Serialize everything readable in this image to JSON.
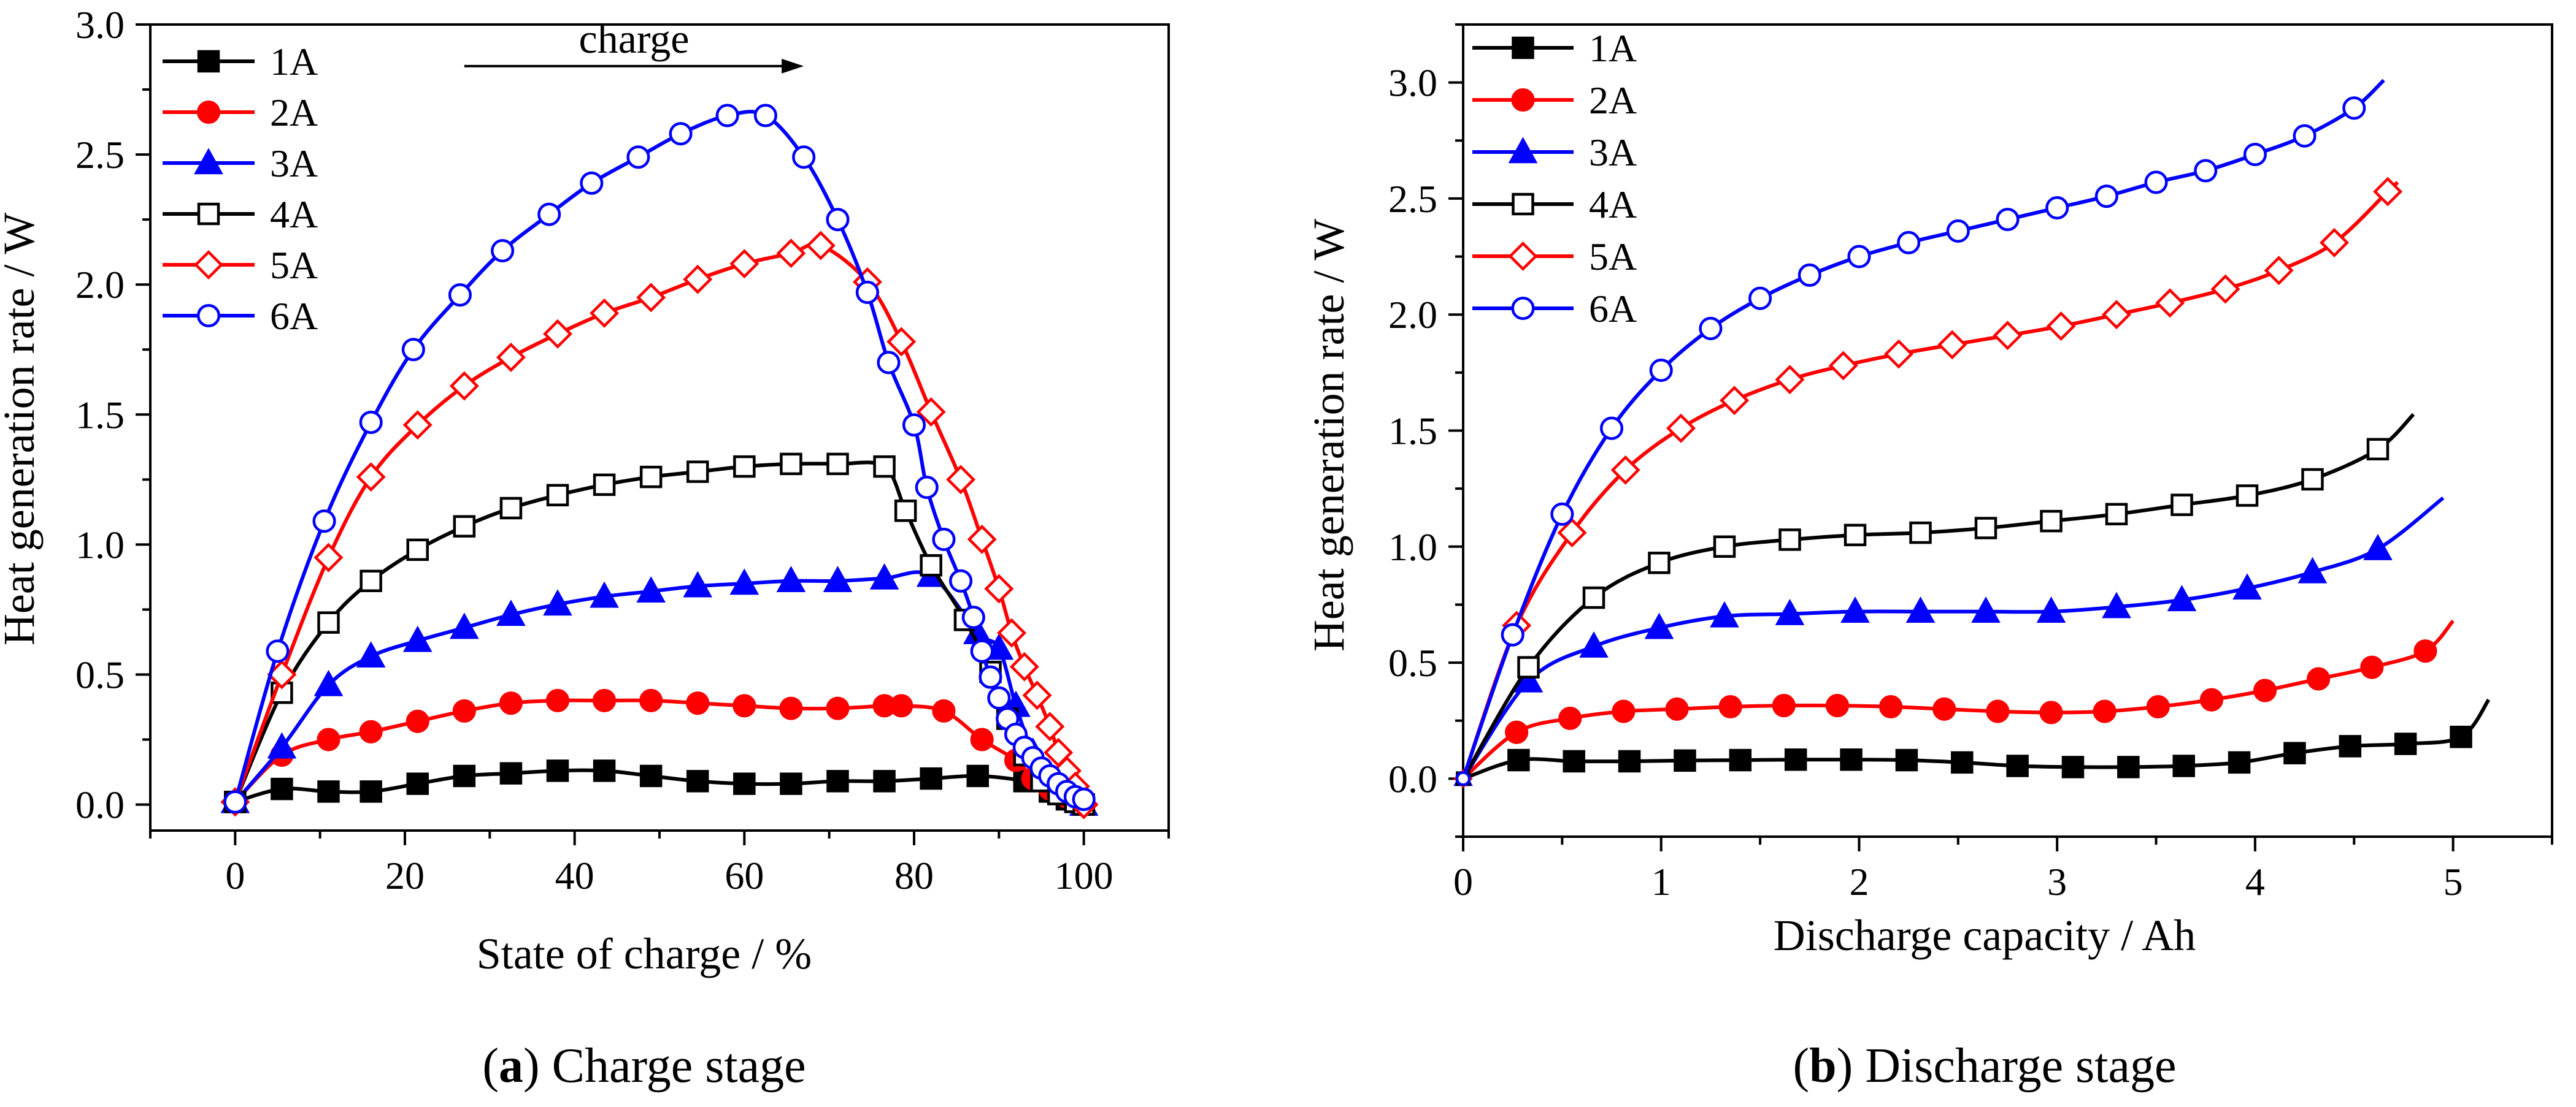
{
  "chart_data": [
    {
      "type": "line",
      "caption_letter": "a",
      "caption_text": " Charge stage",
      "xlabel": "State of charge / %",
      "ylabel": "Heat generation rate / W",
      "xlim": [
        -10,
        110
      ],
      "ylim": [
        -0.1,
        3.0
      ],
      "xticks": [
        0,
        20,
        40,
        60,
        80,
        100
      ],
      "yticks": [
        0.0,
        0.5,
        1.0,
        1.5,
        2.0,
        2.5,
        3.0
      ],
      "xtick_labels": [
        "0",
        "20",
        "40",
        "60",
        "80",
        "100"
      ],
      "ytick_labels": [
        "0.0",
        "0.5",
        "1.0",
        "1.5",
        "2.0",
        "2.5",
        "3.0"
      ],
      "annotation": {
        "text": "charge",
        "x_from": 27,
        "x_to": 67,
        "y": 2.84
      },
      "series": [
        {
          "name": "1A",
          "color": "#000000",
          "marker": "square",
          "filled": true,
          "x": [
            0,
            5.5,
            11,
            16,
            21.5,
            27,
            32.5,
            38,
            43.5,
            49,
            54.5,
            60,
            65.5,
            71,
            76.5,
            82,
            87.5,
            93,
            96,
            98,
            100
          ],
          "y": [
            0.01,
            0.06,
            0.05,
            0.05,
            0.08,
            0.11,
            0.12,
            0.13,
            0.13,
            0.11,
            0.09,
            0.08,
            0.08,
            0.09,
            0.09,
            0.1,
            0.11,
            0.09,
            0.05,
            0.02,
            0.0
          ]
        },
        {
          "name": "2A",
          "color": "#ff0000",
          "marker": "circle",
          "filled": true,
          "x": [
            0,
            5.5,
            11,
            16,
            21.5,
            27,
            32.5,
            38,
            43.5,
            49,
            54.5,
            60,
            65.5,
            71,
            76.5,
            78.5,
            83.5,
            88,
            92,
            94,
            96,
            98,
            100
          ],
          "y": [
            0.01,
            0.19,
            0.25,
            0.28,
            0.32,
            0.36,
            0.39,
            0.4,
            0.4,
            0.4,
            0.39,
            0.38,
            0.37,
            0.37,
            0.38,
            0.38,
            0.36,
            0.25,
            0.17,
            0.1,
            0.06,
            0.03,
            0.0
          ]
        },
        {
          "name": "3A",
          "color": "#0000ff",
          "marker": "triangle",
          "filled": true,
          "x": [
            0,
            5.5,
            11,
            16,
            21.5,
            27,
            32.5,
            38,
            43.5,
            49,
            54.5,
            60,
            65.5,
            71,
            76.5,
            82,
            87.5,
            90,
            92,
            94,
            96,
            98,
            100
          ],
          "y": [
            0.01,
            0.22,
            0.46,
            0.57,
            0.63,
            0.68,
            0.73,
            0.77,
            0.8,
            0.82,
            0.84,
            0.85,
            0.86,
            0.86,
            0.87,
            0.88,
            0.66,
            0.6,
            0.38,
            0.2,
            0.1,
            0.05,
            0.0
          ]
        },
        {
          "name": "4A",
          "color": "#000000",
          "marker": "square",
          "filled": false,
          "x": [
            0,
            5.5,
            11,
            16,
            21.5,
            27,
            32.5,
            38,
            43.5,
            49,
            54.5,
            60,
            65.5,
            71,
            76.5,
            79,
            82,
            86,
            89,
            91,
            93,
            95,
            97,
            99,
            100
          ],
          "y": [
            0.01,
            0.43,
            0.7,
            0.86,
            0.98,
            1.07,
            1.14,
            1.19,
            1.23,
            1.26,
            1.28,
            1.3,
            1.31,
            1.31,
            1.3,
            1.13,
            0.92,
            0.71,
            0.51,
            0.33,
            0.19,
            0.09,
            0.04,
            0.01,
            0.0
          ]
        },
        {
          "name": "5A",
          "color": "#ff0000",
          "marker": "diamond",
          "filled": false,
          "x": [
            0,
            5.5,
            11,
            16,
            21.5,
            27,
            32.5,
            38,
            43.5,
            49,
            54.5,
            60,
            65.5,
            69,
            74.5,
            78.5,
            82,
            85.5,
            88,
            90,
            91.5,
            93,
            94.5,
            96,
            97,
            98,
            99,
            100
          ],
          "y": [
            0.01,
            0.5,
            0.95,
            1.26,
            1.46,
            1.61,
            1.72,
            1.81,
            1.89,
            1.95,
            2.02,
            2.08,
            2.12,
            2.15,
            2.01,
            1.78,
            1.51,
            1.25,
            1.02,
            0.83,
            0.66,
            0.53,
            0.42,
            0.3,
            0.2,
            0.13,
            0.07,
            0.0
          ]
        },
        {
          "name": "6A",
          "color": "#0000ff",
          "marker": "circle",
          "filled": false,
          "x": [
            0,
            5,
            10.5,
            16,
            21,
            26.5,
            31.5,
            37,
            42,
            47.5,
            52.5,
            58,
            62.5,
            67,
            71,
            74.5,
            77,
            80,
            81.5,
            83.5,
            85.5,
            87,
            88,
            89,
            90,
            91,
            92,
            93,
            94,
            95,
            96,
            97,
            98,
            99,
            100
          ],
          "y": [
            0.01,
            0.59,
            1.09,
            1.47,
            1.75,
            1.96,
            2.13,
            2.27,
            2.39,
            2.49,
            2.58,
            2.65,
            2.65,
            2.49,
            2.25,
            1.97,
            1.7,
            1.46,
            1.22,
            1.02,
            0.86,
            0.72,
            0.59,
            0.49,
            0.41,
            0.33,
            0.27,
            0.22,
            0.18,
            0.14,
            0.11,
            0.08,
            0.05,
            0.03,
            0.02
          ]
        }
      ]
    },
    {
      "type": "line",
      "caption_letter": "b",
      "caption_text": " Discharge stage",
      "xlabel": "Discharge capacity / Ah",
      "ylabel": "Heat generation rate / W",
      "xlim": [
        0,
        5.5
      ],
      "ylim": [
        -0.25,
        3.25
      ],
      "xticks": [
        0,
        1,
        2,
        3,
        4,
        5
      ],
      "yticks": [
        0.0,
        0.5,
        1.0,
        1.5,
        2.0,
        2.5,
        3.0
      ],
      "xtick_labels": [
        "0",
        "1",
        "2",
        "3",
        "4",
        "5"
      ],
      "ytick_labels": [
        "0.0",
        "0.5",
        "1.0",
        "1.5",
        "2.0",
        "2.5",
        "3.0"
      ],
      "series": [
        {
          "name": "1A",
          "color": "#000000",
          "marker": "square",
          "filled": true,
          "x": [
            0,
            0.28,
            0.56,
            0.84,
            1.12,
            1.4,
            1.68,
            1.96,
            2.24,
            2.52,
            2.8,
            3.08,
            3.36,
            3.64,
            3.92,
            4.2,
            4.48,
            4.76,
            5.04,
            5.18
          ],
          "y": [
            0.0,
            0.08,
            0.075,
            0.075,
            0.078,
            0.08,
            0.082,
            0.082,
            0.08,
            0.07,
            0.055,
            0.05,
            0.05,
            0.055,
            0.07,
            0.11,
            0.14,
            0.15,
            0.18,
            0.34
          ],
          "marker_x": [
            0.28,
            0.56,
            0.84,
            1.12,
            1.4,
            1.68,
            1.96,
            2.24,
            2.52,
            2.8,
            3.08,
            3.36,
            3.64,
            3.92,
            4.2,
            4.48,
            4.76,
            5.04
          ]
        },
        {
          "name": "2A",
          "color": "#ff0000",
          "marker": "circle",
          "filled": true,
          "x": [
            0,
            0.27,
            0.54,
            0.81,
            1.08,
            1.35,
            1.62,
            1.89,
            2.16,
            2.43,
            2.7,
            2.97,
            3.24,
            3.51,
            3.78,
            4.05,
            4.32,
            4.59,
            4.86,
            5.0
          ],
          "y": [
            0.0,
            0.2,
            0.26,
            0.29,
            0.3,
            0.31,
            0.315,
            0.315,
            0.31,
            0.3,
            0.29,
            0.285,
            0.29,
            0.31,
            0.34,
            0.38,
            0.43,
            0.48,
            0.55,
            0.68
          ],
          "marker_x": [
            0.27,
            0.54,
            0.81,
            1.08,
            1.35,
            1.62,
            1.89,
            2.16,
            2.43,
            2.7,
            2.97,
            3.24,
            3.51,
            3.78,
            4.05,
            4.32,
            4.59,
            4.86
          ]
        },
        {
          "name": "3A",
          "color": "#0000ff",
          "marker": "triangle",
          "filled": true,
          "x": [
            0,
            0.33,
            0.66,
            0.99,
            1.32,
            1.65,
            1.98,
            2.31,
            2.64,
            2.97,
            3.3,
            3.63,
            3.96,
            4.29,
            4.62,
            4.95
          ],
          "y": [
            0.0,
            0.42,
            0.57,
            0.65,
            0.7,
            0.71,
            0.72,
            0.72,
            0.72,
            0.72,
            0.74,
            0.77,
            0.82,
            0.89,
            0.99,
            1.21
          ],
          "marker_x": [
            0.33,
            0.66,
            0.99,
            1.32,
            1.65,
            1.98,
            2.31,
            2.64,
            2.97,
            3.3,
            3.63,
            3.96,
            4.29,
            4.62
          ]
        },
        {
          "name": "4A",
          "color": "#000000",
          "marker": "square",
          "filled": false,
          "x": [
            0,
            0.33,
            0.66,
            0.99,
            1.32,
            1.65,
            1.98,
            2.31,
            2.64,
            2.97,
            3.3,
            3.63,
            3.96,
            4.29,
            4.62,
            4.8
          ],
          "y": [
            0.0,
            0.48,
            0.78,
            0.93,
            1.0,
            1.03,
            1.05,
            1.06,
            1.08,
            1.11,
            1.14,
            1.18,
            1.22,
            1.29,
            1.42,
            1.57
          ],
          "marker_x": [
            0.33,
            0.66,
            0.99,
            1.32,
            1.65,
            1.98,
            2.31,
            2.64,
            2.97,
            3.3,
            3.63,
            3.96,
            4.29,
            4.62
          ]
        },
        {
          "name": "5A",
          "color": "#ff0000",
          "marker": "diamond",
          "filled": false,
          "x": [
            0,
            0.27,
            0.55,
            0.82,
            1.1,
            1.37,
            1.65,
            1.92,
            2.2,
            2.47,
            2.75,
            3.02,
            3.3,
            3.57,
            3.85,
            4.12,
            4.4,
            4.67,
            4.72
          ],
          "y": [
            0.0,
            0.66,
            1.06,
            1.33,
            1.51,
            1.63,
            1.72,
            1.78,
            1.83,
            1.87,
            1.91,
            1.95,
            2.0,
            2.05,
            2.11,
            2.19,
            2.31,
            2.53,
            2.57
          ],
          "marker_x": [
            0.27,
            0.55,
            0.82,
            1.1,
            1.37,
            1.65,
            1.92,
            2.2,
            2.47,
            2.75,
            3.02,
            3.3,
            3.57,
            3.85,
            4.12,
            4.4,
            4.67
          ]
        },
        {
          "name": "6A",
          "color": "#0000ff",
          "marker": "circle",
          "filled": false,
          "x": [
            0,
            0.25,
            0.5,
            0.75,
            1.0,
            1.25,
            1.5,
            1.75,
            2.0,
            2.25,
            2.5,
            2.75,
            3.0,
            3.25,
            3.5,
            3.75,
            4.0,
            4.25,
            4.5,
            4.65
          ],
          "y": [
            0.0,
            0.62,
            1.14,
            1.51,
            1.76,
            1.94,
            2.07,
            2.17,
            2.25,
            2.31,
            2.36,
            2.41,
            2.46,
            2.51,
            2.57,
            2.62,
            2.69,
            2.77,
            2.89,
            3.01
          ],
          "marker_x": [
            0.25,
            0.5,
            0.75,
            1.0,
            1.25,
            1.5,
            1.75,
            2.0,
            2.25,
            2.5,
            2.75,
            3.0,
            3.25,
            3.5,
            3.75,
            4.0,
            4.25,
            4.5
          ]
        }
      ]
    }
  ]
}
